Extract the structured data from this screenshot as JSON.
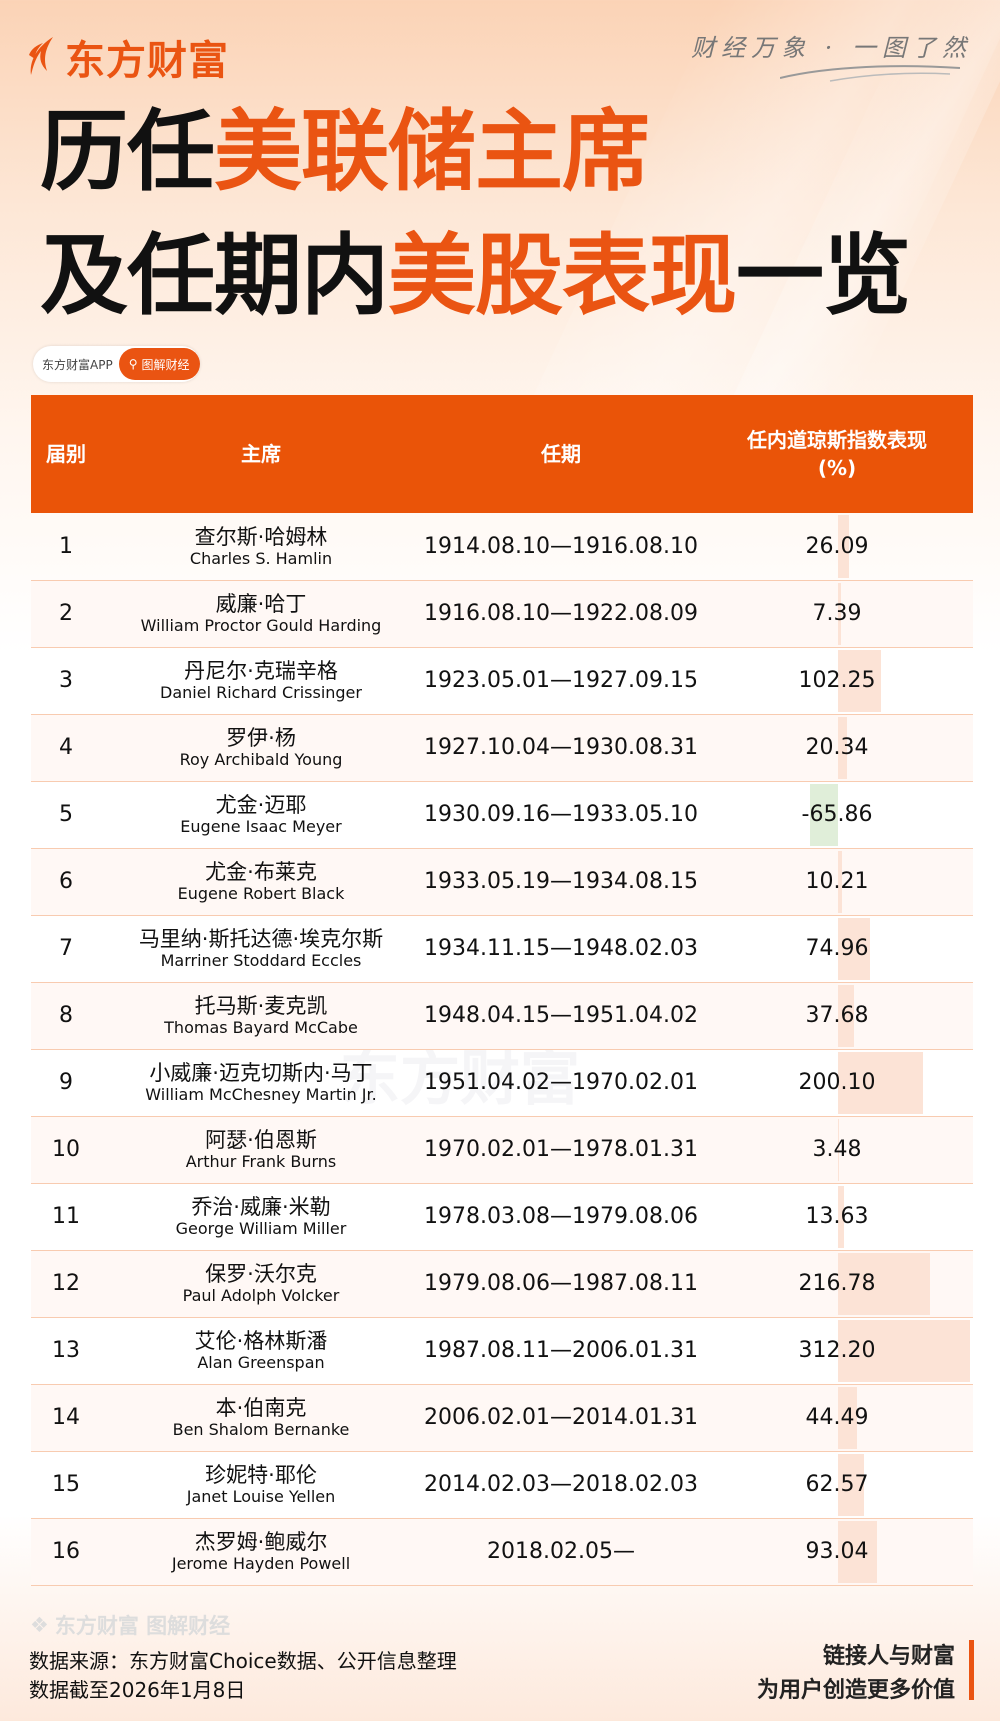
{
  "brand": {
    "logo_text": "东方财富",
    "tagline": "财经万象 · 一图了然",
    "accent": "#ea5412"
  },
  "title": {
    "line1_a": "历任",
    "line1_b": "美联储主席",
    "line2_a": "及任期内",
    "line2_b": "美股表现",
    "line2_c": "一览"
  },
  "badge": {
    "app": "东方财富APP",
    "search": "图解财经"
  },
  "table": {
    "headers": [
      "届别",
      "主席",
      "任期",
      "任内道琼斯指数表现",
      "(%)"
    ],
    "rows": [
      {
        "no": "1",
        "cn": "查尔斯·哈姆林",
        "en": "Charles S. Hamlin",
        "term": "1914.08.10—1916.08.10",
        "value": 26.09,
        "label": "26.09"
      },
      {
        "no": "2",
        "cn": "威廉·哈丁",
        "en": "William Proctor Gould Harding",
        "term": "1916.08.10—1922.08.09",
        "value": 7.39,
        "label": "7.39"
      },
      {
        "no": "3",
        "cn": "丹尼尔·克瑞辛格",
        "en": "Daniel Richard Crissinger",
        "term": "1923.05.01—1927.09.15",
        "value": 102.25,
        "label": "102.25"
      },
      {
        "no": "4",
        "cn": "罗伊·杨",
        "en": "Roy Archibald Young",
        "term": "1927.10.04—1930.08.31",
        "value": 20.34,
        "label": "20.34"
      },
      {
        "no": "5",
        "cn": "尤金·迈耶",
        "en": "Eugene Isaac Meyer",
        "term": "1930.09.16—1933.05.10",
        "value": -65.86,
        "label": "-65.86"
      },
      {
        "no": "6",
        "cn": "尤金·布莱克",
        "en": "Eugene Robert Black",
        "term": "1933.05.19—1934.08.15",
        "value": 10.21,
        "label": "10.21"
      },
      {
        "no": "7",
        "cn": "马里纳·斯托达德·埃克尔斯",
        "en": "Marriner Stoddard Eccles",
        "term": "1934.11.15—1948.02.03",
        "value": 74.96,
        "label": "74.96"
      },
      {
        "no": "8",
        "cn": "托马斯·麦克凯",
        "en": "Thomas Bayard McCabe",
        "term": "1948.04.15—1951.04.02",
        "value": 37.68,
        "label": "37.68"
      },
      {
        "no": "9",
        "cn": "小威廉·迈克切斯内·马丁",
        "en": "William McChesney Martin Jr.",
        "term": "1951.04.02—1970.02.01",
        "value": 200.1,
        "label": "200.10"
      },
      {
        "no": "10",
        "cn": "阿瑟·伯恩斯",
        "en": "Arthur Frank Burns",
        "term": "1970.02.01—1978.01.31",
        "value": 3.48,
        "label": "3.48"
      },
      {
        "no": "11",
        "cn": "乔治·威廉·米勒",
        "en": "George William Miller",
        "term": "1978.03.08—1979.08.06",
        "value": 13.63,
        "label": "13.63"
      },
      {
        "no": "12",
        "cn": "保罗·沃尔克",
        "en": "Paul Adolph Volcker",
        "term": "1979.08.06—1987.08.11",
        "value": 216.78,
        "label": "216.78"
      },
      {
        "no": "13",
        "cn": "艾伦·格林斯潘",
        "en": "Alan Greenspan",
        "term": "1987.08.11—2006.01.31",
        "value": 312.2,
        "label": "312.20"
      },
      {
        "no": "14",
        "cn": "本·伯南克",
        "en": "Ben Shalom Bernanke",
        "term": "2006.02.01—2014.01.31",
        "value": 44.49,
        "label": "44.49"
      },
      {
        "no": "15",
        "cn": "珍妮特·耶伦",
        "en": "Janet Louise Yellen",
        "term": "2014.02.03—2018.02.03",
        "value": 62.57,
        "label": "62.57"
      },
      {
        "no": "16",
        "cn": "杰罗姆·鲍威尔",
        "en": "Jerome Hayden Powell",
        "term": "2018.02.05—",
        "value": 93.04,
        "label": "93.04"
      }
    ],
    "colors": {
      "positive": "#fce3d6",
      "negative": "#e0eed9",
      "header": "#ea5408"
    }
  },
  "footer": {
    "watermark": "东方财富 图解财经",
    "source": "数据来源：东方财富Choice数据、公开信息整理",
    "date": "数据截至2026年1月8日",
    "slogan1": "链接人与财富",
    "slogan2": "为用户创造更多价值"
  }
}
